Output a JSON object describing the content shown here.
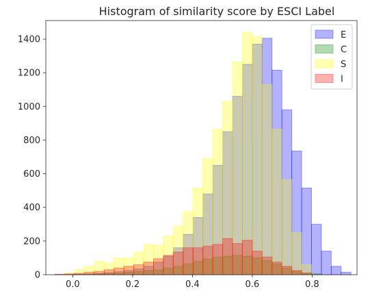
{
  "chart_data": {
    "type": "bar",
    "title": "Histogram of similarity score by ESCI Label",
    "xlabel": "",
    "ylabel": "",
    "xlim": [
      -0.09,
      0.95
    ],
    "ylim": [
      0,
      1510
    ],
    "xticks": [
      0.0,
      0.2,
      0.4,
      0.6,
      0.8
    ],
    "xtick_labels": [
      "0.0",
      "0.2",
      "0.4",
      "0.6",
      "0.8"
    ],
    "yticks": [
      0,
      200,
      400,
      600,
      800,
      1000,
      1200,
      1400
    ],
    "ytick_labels": [
      "0",
      "200",
      "400",
      "600",
      "800",
      "1000",
      "1200",
      "1400"
    ],
    "legend_position": "top-right",
    "grid": false,
    "series": [
      {
        "name": "E",
        "color": "#0000ff",
        "bin_width": 0.033,
        "bin_starts": [
          -0.06,
          -0.027,
          0.006,
          0.039,
          0.072,
          0.105,
          0.138,
          0.171,
          0.204,
          0.237,
          0.27,
          0.303,
          0.336,
          0.369,
          0.402,
          0.435,
          0.468,
          0.501,
          0.534,
          0.567,
          0.6,
          0.633,
          0.666,
          0.699,
          0.732,
          0.765,
          0.798,
          0.831,
          0.864,
          0.897
        ],
        "values": [
          1,
          2,
          3,
          5,
          8,
          12,
          18,
          25,
          35,
          50,
          75,
          110,
          160,
          240,
          340,
          480,
          650,
          850,
          1060,
          1250,
          1370,
          1405,
          1215,
          980,
          735,
          515,
          300,
          140,
          50,
          15
        ]
      },
      {
        "name": "C",
        "color": "#008000",
        "bin_width": 0.033,
        "bin_starts": [
          0.006,
          0.039,
          0.072,
          0.105,
          0.138,
          0.171,
          0.204,
          0.237,
          0.27,
          0.303,
          0.336,
          0.369,
          0.402,
          0.435,
          0.468,
          0.501,
          0.534,
          0.567,
          0.6,
          0.633,
          0.666,
          0.699,
          0.732,
          0.765,
          0.798
        ],
        "values": [
          2,
          3,
          5,
          8,
          10,
          15,
          20,
          25,
          30,
          40,
          50,
          65,
          80,
          95,
          105,
          110,
          115,
          110,
          100,
          85,
          65,
          40,
          20,
          10,
          5
        ]
      },
      {
        "name": "S",
        "color": "#ffff00",
        "bin_width": 0.033,
        "bin_starts": [
          -0.027,
          0.006,
          0.039,
          0.072,
          0.105,
          0.138,
          0.171,
          0.204,
          0.237,
          0.27,
          0.303,
          0.336,
          0.369,
          0.402,
          0.435,
          0.468,
          0.501,
          0.534,
          0.567,
          0.6,
          0.633,
          0.666,
          0.699,
          0.732,
          0.765
        ],
        "values": [
          10,
          30,
          50,
          80,
          70,
          100,
          100,
          135,
          180,
          175,
          230,
          290,
          375,
          515,
          690,
          865,
          1030,
          1265,
          1440,
          1415,
          1130,
          865,
          565,
          250,
          60
        ]
      },
      {
        "name": "I",
        "color": "#ff0000",
        "bin_width": 0.033,
        "bin_starts": [
          -0.06,
          -0.027,
          0.006,
          0.039,
          0.072,
          0.105,
          0.138,
          0.171,
          0.204,
          0.237,
          0.27,
          0.303,
          0.336,
          0.369,
          0.402,
          0.435,
          0.468,
          0.501,
          0.534,
          0.567,
          0.6,
          0.633,
          0.666,
          0.699,
          0.732,
          0.765
        ],
        "values": [
          3,
          5,
          8,
          15,
          20,
          30,
          40,
          50,
          60,
          75,
          95,
          115,
          135,
          160,
          160,
          170,
          180,
          215,
          185,
          205,
          140,
          105,
          75,
          50,
          25,
          10
        ]
      }
    ]
  }
}
